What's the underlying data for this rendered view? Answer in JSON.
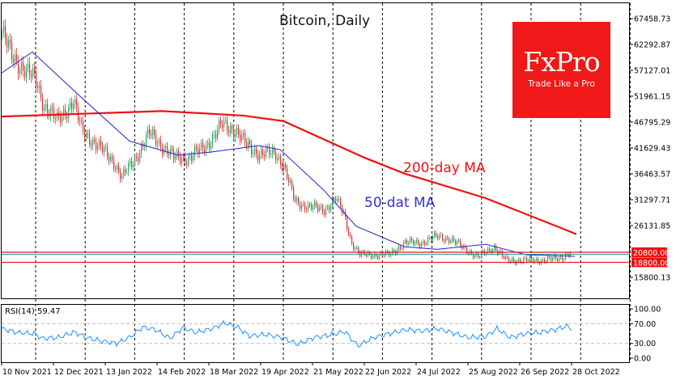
{
  "chart_data": {
    "type": "candlestick",
    "title": "Bitcoin, Daily",
    "instrument": "Bitcoin",
    "timeframe": "Daily",
    "y_ticks": [
      "67458.73",
      "62292.87",
      "57127.01",
      "51961.15",
      "46795.29",
      "41629.43",
      "36463.57",
      "31297.71",
      "26131.85",
      "15800.13"
    ],
    "ylim": [
      12000,
      71000
    ],
    "x_ticks": [
      "10 Nov 2021",
      "12 Dec 2021",
      "13 Jan 2022",
      "14 Feb 2022",
      "18 Mar 2022",
      "19 Apr 2022",
      "21 May 2022",
      "22 Jun 2022",
      "24 Jul 2022",
      "25 Aug 2022",
      "26 Sep 2022",
      "28 Oct 2022"
    ],
    "x_tick_dates": [
      "2021-11-10",
      "2021-12-12",
      "2022-01-13",
      "2022-02-14",
      "2022-03-18",
      "2022-04-19",
      "2022-05-21",
      "2022-06-22",
      "2022-07-24",
      "2022-08-25",
      "2022-09-26",
      "2022-10-28"
    ],
    "price_close": [
      [
        "2021-11-10",
        64700
      ],
      [
        "2021-11-16",
        59900
      ],
      [
        "2021-11-24",
        57400
      ],
      [
        "2021-12-01",
        55000
      ],
      [
        "2021-12-06",
        50200
      ],
      [
        "2021-12-14",
        47000
      ],
      [
        "2021-12-24",
        51000
      ],
      [
        "2021-12-29",
        45300
      ],
      [
        "2022-01-08",
        42100
      ],
      [
        "2022-01-18",
        38900
      ],
      [
        "2022-01-23",
        35700
      ],
      [
        "2022-01-30",
        38900
      ],
      [
        "2022-02-09",
        44500
      ],
      [
        "2022-02-17",
        42100
      ],
      [
        "2022-02-24",
        39700
      ],
      [
        "2022-03-06",
        39700
      ],
      [
        "2022-03-16",
        42100
      ],
      [
        "2022-03-26",
        46200
      ],
      [
        "2022-04-03",
        45300
      ],
      [
        "2022-04-10",
        42100
      ],
      [
        "2022-04-18",
        40500
      ],
      [
        "2022-04-28",
        40500
      ],
      [
        "2022-05-03",
        38100
      ],
      [
        "2022-05-10",
        30800
      ],
      [
        "2022-05-18",
        30000
      ],
      [
        "2022-05-28",
        29200
      ],
      [
        "2022-06-04",
        31600
      ],
      [
        "2022-06-09",
        28400
      ],
      [
        "2022-06-14",
        22700
      ],
      [
        "2022-06-19",
        20300
      ],
      [
        "2022-06-27",
        20300
      ],
      [
        "2022-07-07",
        20300
      ],
      [
        "2022-07-17",
        22700
      ],
      [
        "2022-07-27",
        22700
      ],
      [
        "2022-08-06",
        24000
      ],
      [
        "2022-08-13",
        23500
      ],
      [
        "2022-08-21",
        21900
      ],
      [
        "2022-08-31",
        19800
      ],
      [
        "2022-09-10",
        21900
      ],
      [
        "2022-09-17",
        19200
      ],
      [
        "2022-09-27",
        19200
      ],
      [
        "2022-10-07",
        19200
      ],
      [
        "2022-10-20",
        19500
      ],
      [
        "2022-10-27",
        20800
      ]
    ],
    "ma200": {
      "label": "200-day MA",
      "color": "#ee1111",
      "values": [
        [
          "2021-11-10",
          47900
        ],
        [
          "2022-02-17",
          49000
        ],
        [
          "2022-04-08",
          48100
        ],
        [
          "2022-05-03",
          47000
        ],
        [
          "2022-06-22",
          39700
        ],
        [
          "2022-07-17",
          36500
        ],
        [
          "2022-09-05",
          31600
        ],
        [
          "2022-10-25",
          25200
        ],
        [
          "2022-10-31",
          24400
        ]
      ]
    },
    "ma50": {
      "label": "50-dat MA",
      "color": "#2222cc",
      "values": [
        [
          "2021-11-10",
          56600
        ],
        [
          "2021-11-29",
          60800
        ],
        [
          "2021-12-29",
          51800
        ],
        [
          "2022-01-28",
          43000
        ],
        [
          "2022-02-27",
          40200
        ],
        [
          "2022-03-19",
          40800
        ],
        [
          "2022-04-18",
          42100
        ],
        [
          "2022-05-01",
          41300
        ],
        [
          "2022-05-28",
          33200
        ],
        [
          "2022-06-17",
          26000
        ],
        [
          "2022-07-17",
          21900
        ],
        [
          "2022-08-06",
          21400
        ],
        [
          "2022-09-05",
          22400
        ],
        [
          "2022-09-30",
          20300
        ],
        [
          "2022-10-30",
          20000
        ]
      ]
    },
    "levels": [
      {
        "value": "20800.00",
        "color": "#ee1111"
      },
      {
        "value": "18800.00",
        "color": "#ee1111"
      }
    ],
    "current_price_color": "#20a0a0",
    "rsi": {
      "label": "RSI(14) 59.47",
      "levels": [
        70,
        30
      ],
      "y_ticks": [
        "100.00",
        "70.00",
        "30.00",
        "0.00"
      ],
      "color": "#1e90ff",
      "values": [
        [
          "2021-11-10",
          60
        ],
        [
          "2021-11-20",
          52
        ],
        [
          "2021-11-30",
          50
        ],
        [
          "2021-12-05",
          40
        ],
        [
          "2021-12-15",
          42
        ],
        [
          "2021-12-25",
          53
        ],
        [
          "2022-01-01",
          42
        ],
        [
          "2022-01-10",
          35
        ],
        [
          "2022-01-20",
          30
        ],
        [
          "2022-01-28",
          42
        ],
        [
          "2022-02-05",
          63
        ],
        [
          "2022-02-13",
          58
        ],
        [
          "2022-02-22",
          40
        ],
        [
          "2022-03-02",
          62
        ],
        [
          "2022-03-10",
          52
        ],
        [
          "2022-03-20",
          60
        ],
        [
          "2022-03-28",
          72
        ],
        [
          "2022-04-05",
          62
        ],
        [
          "2022-04-12",
          45
        ],
        [
          "2022-04-22",
          48
        ],
        [
          "2022-05-02",
          42
        ],
        [
          "2022-05-12",
          28
        ],
        [
          "2022-05-22",
          42
        ],
        [
          "2022-06-01",
          47
        ],
        [
          "2022-06-10",
          54
        ],
        [
          "2022-06-18",
          25
        ],
        [
          "2022-06-28",
          42
        ],
        [
          "2022-07-08",
          50
        ],
        [
          "2022-07-18",
          58
        ],
        [
          "2022-07-28",
          55
        ],
        [
          "2022-08-06",
          60
        ],
        [
          "2022-08-15",
          52
        ],
        [
          "2022-08-25",
          42
        ],
        [
          "2022-09-05",
          44
        ],
        [
          "2022-09-12",
          60
        ],
        [
          "2022-09-20",
          42
        ],
        [
          "2022-09-30",
          50
        ],
        [
          "2022-10-08",
          52
        ],
        [
          "2022-10-18",
          58
        ],
        [
          "2022-10-25",
          65
        ],
        [
          "2022-10-28",
          59.47
        ]
      ]
    },
    "colors": {
      "bull": "#26a65b",
      "bear": "#d03030",
      "grid": "#000000"
    }
  },
  "logo": {
    "brand": "FxPro",
    "tagline": "Trade Like a Pro",
    "color": "#f01818"
  }
}
